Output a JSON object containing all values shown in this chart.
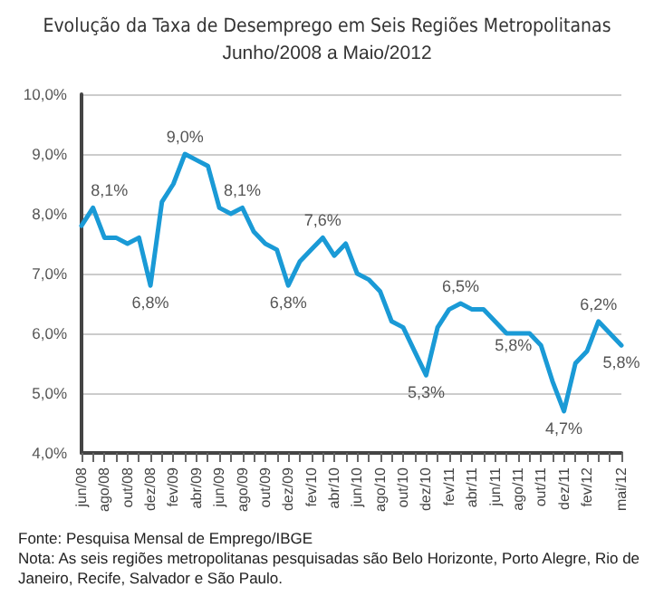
{
  "chart_data": {
    "type": "line",
    "title": "Evolução da Taxa de Desemprego em Seis Regiões Metropolitanas",
    "subtitle": "Junho/2008 a Maio/2012",
    "categories": [
      "jun/08",
      null,
      "ago/08",
      null,
      "out/08",
      null,
      "dez/08",
      null,
      "fev/09",
      null,
      "abr/09",
      null,
      "jun/09",
      null,
      "ago/09",
      null,
      "out/09",
      null,
      "dez/09",
      null,
      "fev/10",
      null,
      "abr/10",
      null,
      "jun/10",
      null,
      "ago/10",
      null,
      "out/10",
      null,
      "dez/10",
      null,
      "fev/11",
      null,
      "abr/11",
      null,
      "jun/11",
      null,
      "ago/11",
      null,
      "out/11",
      null,
      "dez/11",
      null,
      "fev/12",
      null,
      null,
      "mai/12"
    ],
    "series": [
      {
        "color": "#1a9ad6",
        "values": [
          7.8,
          8.1,
          7.6,
          7.6,
          7.5,
          7.6,
          6.8,
          8.2,
          8.5,
          9.0,
          8.9,
          8.8,
          8.1,
          8.0,
          8.1,
          7.7,
          7.5,
          7.4,
          6.8,
          7.2,
          7.4,
          7.6,
          7.3,
          7.5,
          7.0,
          6.9,
          6.7,
          6.2,
          6.1,
          5.7,
          5.3,
          6.1,
          6.4,
          6.5,
          6.4,
          6.4,
          6.2,
          6.0,
          6.0,
          6.0,
          5.8,
          5.2,
          4.7,
          5.5,
          5.7,
          6.2,
          6.0,
          5.8
        ],
        "value_labels": [
          null,
          "8,1%",
          null,
          null,
          null,
          null,
          "6,8%",
          null,
          null,
          "9,0%",
          null,
          null,
          null,
          null,
          "8,1%",
          null,
          null,
          null,
          "6,8%",
          null,
          null,
          "7,6%",
          null,
          null,
          null,
          null,
          null,
          null,
          null,
          null,
          "5,3%",
          null,
          null,
          "6,5%",
          null,
          null,
          null,
          null,
          null,
          null,
          "5,8%",
          null,
          "4,7%",
          null,
          null,
          "6,2%",
          null,
          "5,8%"
        ]
      }
    ],
    "ylim": [
      4,
      10
    ],
    "yticks": [
      {
        "value": 4,
        "label": "4,0%"
      },
      {
        "value": 5,
        "label": "5,0%"
      },
      {
        "value": 6,
        "label": "6,0%"
      },
      {
        "value": 7,
        "label": "7,0%"
      },
      {
        "value": 8,
        "label": "8,0%"
      },
      {
        "value": 9,
        "label": "9,0%"
      },
      {
        "value": 10,
        "label": "10,0%"
      }
    ],
    "grid": "y",
    "marker": "none",
    "line_style": "solid",
    "annotations": [
      "Fonte: Pesquisa Mensal de Emprego/IBGE",
      "Nota: As seis regiões metropolitanas pesquisadas são Belo Horizonte, Porto Alegre, Rio de Janeiro, Recife, Salvador e São Paulo."
    ]
  }
}
